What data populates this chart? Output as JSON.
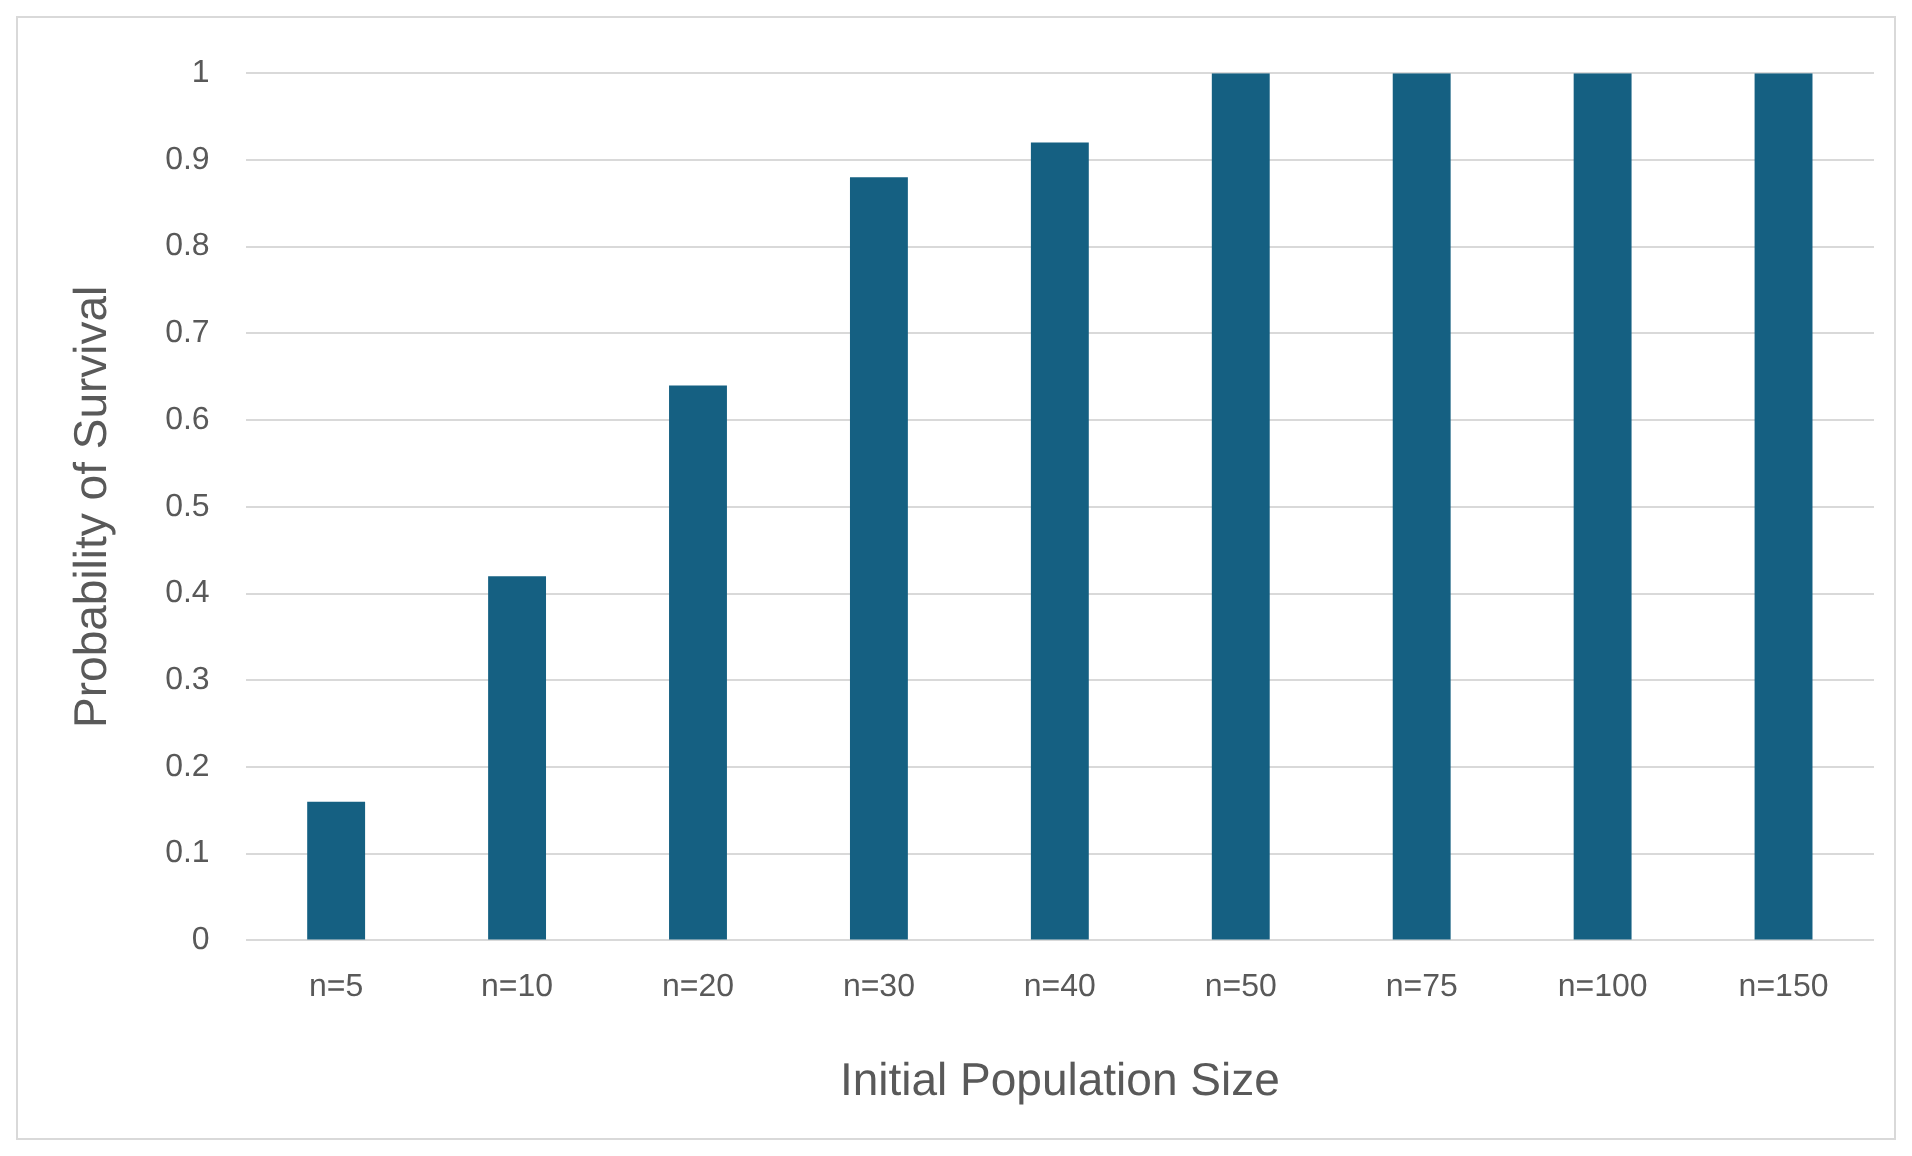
{
  "chart_data": {
    "type": "bar",
    "xlabel": "Initial Population Size",
    "ylabel": "Probability of Survival",
    "categories": [
      "n=5",
      "n=10",
      "n=20",
      "n=30",
      "n=40",
      "n=50",
      "n=75",
      "n=100",
      "n=150"
    ],
    "values": [
      0.16,
      0.42,
      0.64,
      0.88,
      0.92,
      1,
      1,
      1,
      1
    ],
    "color": "#156082",
    "ylim": [
      0,
      1
    ],
    "yticks": [
      0,
      0.1,
      0.2,
      0.3,
      0.4,
      0.5,
      0.6,
      0.7,
      0.8,
      0.9,
      1
    ],
    "grid": "y"
  }
}
